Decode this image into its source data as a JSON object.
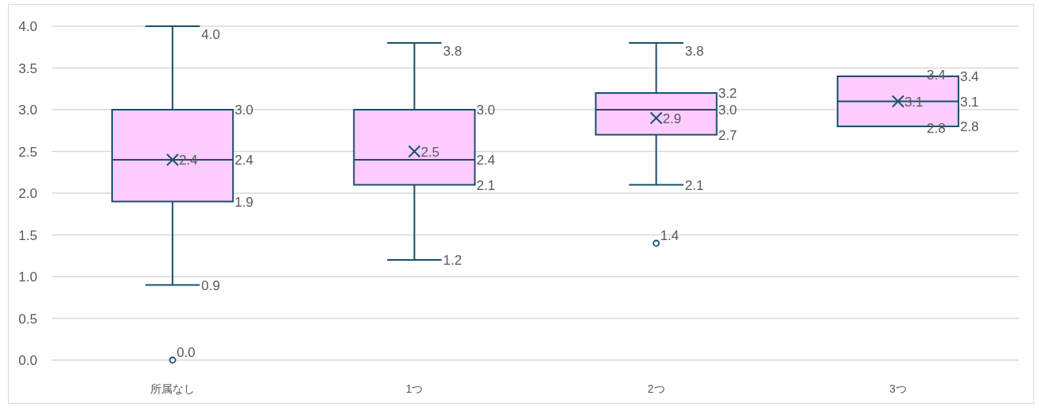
{
  "chart_data": {
    "type": "box",
    "categories": [
      "所属なし",
      "1つ",
      "2つ",
      "3つ"
    ],
    "series": [
      {
        "color": "#ffccff",
        "boxes": [
          {
            "low": 0.9,
            "q1": 1.9,
            "median": 2.4,
            "q3": 3.0,
            "high": 4.0,
            "mean": 2.4,
            "outliers": [
              0.0
            ]
          },
          {
            "low": 1.2,
            "q1": 2.1,
            "median": 2.4,
            "q3": 3.0,
            "high": 3.8,
            "mean": 2.5
          },
          {
            "low": 2.1,
            "q1": 2.7,
            "median": 3.0,
            "q3": 3.2,
            "high": 3.8,
            "mean": 2.9,
            "outliers": [
              1.4
            ]
          },
          {
            "low": 2.8,
            "q1": 2.8,
            "median": 3.1,
            "q3": 3.4,
            "high": 3.4,
            "mean": 3.1
          }
        ]
      }
    ],
    "ylim": [
      0,
      4
    ],
    "yticks": [
      {
        "value": 0,
        "label": "0.0"
      },
      {
        "value": 0.5,
        "label": "0.5"
      },
      {
        "value": 1,
        "label": "1.0"
      },
      {
        "value": 1.5,
        "label": "1.5"
      },
      {
        "value": 2,
        "label": "2.0"
      },
      {
        "value": 2.5,
        "label": "2.5"
      },
      {
        "value": 3,
        "label": "3.0"
      },
      {
        "value": 3.5,
        "label": "3.5"
      },
      {
        "value": 4,
        "label": "4.0"
      }
    ],
    "grid": "y",
    "data_labels": true,
    "annotations": [
      "4.0",
      "0.9",
      "3.0",
      "2.4",
      "1.9",
      "2.4",
      "0.0",
      "3.8",
      "1.2",
      "3.0",
      "2.4",
      "2.1",
      "2.5",
      "3.8",
      "2.1",
      "3.2",
      "3.0",
      "2.7",
      "2.9",
      "1.4",
      "3.4",
      "2.8",
      "3.4",
      "3.1",
      "2.8",
      "3.1"
    ]
  }
}
